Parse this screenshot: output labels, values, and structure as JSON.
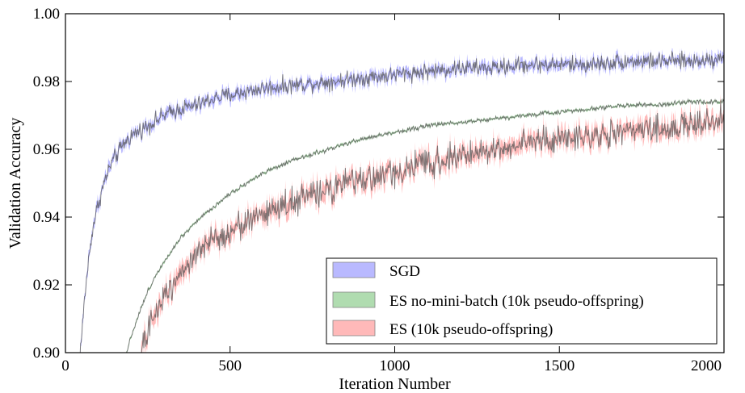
{
  "chart_data": {
    "type": "line",
    "title": "",
    "xlabel": "Iteration Number",
    "ylabel": "Validation Accuracy",
    "xlim": [
      0,
      2000
    ],
    "ylim": [
      0.9,
      1.0
    ],
    "x_ticks": [
      0,
      500,
      1000,
      1500,
      2000
    ],
    "x_tick_labels": [
      "0",
      "500",
      "1000",
      "1500",
      "2000"
    ],
    "y_ticks": [
      0.9,
      0.92,
      0.94,
      0.96,
      0.98,
      1.0
    ],
    "y_tick_labels": [
      "0.90",
      "0.92",
      "0.94",
      "0.96",
      "0.98",
      "1.00"
    ],
    "grid": false,
    "legend_position": "bottom-right",
    "series": [
      {
        "name": "SGD",
        "color": "#8080ff",
        "x": [
          40,
          50,
          60,
          70,
          80,
          90,
          100,
          120,
          140,
          160,
          180,
          200,
          250,
          300,
          350,
          400,
          450,
          500,
          600,
          700,
          800,
          900,
          1000,
          1100,
          1200,
          1300,
          1400,
          1500,
          1600,
          1700,
          1800,
          1900,
          2000
        ],
        "values": [
          0.895,
          0.906,
          0.918,
          0.927,
          0.935,
          0.94,
          0.944,
          0.951,
          0.956,
          0.959,
          0.962,
          0.964,
          0.967,
          0.97,
          0.972,
          0.973,
          0.975,
          0.976,
          0.978,
          0.979,
          0.98,
          0.981,
          0.982,
          0.983,
          0.984,
          0.984,
          0.985,
          0.985,
          0.985,
          0.986,
          0.986,
          0.986,
          0.987
        ],
        "noise": 0.0015
      },
      {
        "name": "ES no-mini-batch (10k pseudo-offspring)",
        "color": "#70c070",
        "x": [
          185,
          200,
          225,
          250,
          275,
          300,
          350,
          400,
          450,
          500,
          600,
          700,
          800,
          900,
          1000,
          1100,
          1200,
          1300,
          1400,
          1500,
          1600,
          1700,
          1800,
          1900,
          2000
        ],
        "values": [
          0.9,
          0.905,
          0.912,
          0.918,
          0.923,
          0.927,
          0.934,
          0.939,
          0.943,
          0.947,
          0.953,
          0.957,
          0.96,
          0.963,
          0.965,
          0.967,
          0.968,
          0.969,
          0.97,
          0.971,
          0.972,
          0.973,
          0.973,
          0.974,
          0.974
        ],
        "noise": 0.0004
      },
      {
        "name": "ES (10k pseudo-offspring)",
        "color": "#ff8080",
        "x": [
          230,
          250,
          275,
          300,
          350,
          400,
          450,
          500,
          600,
          700,
          800,
          900,
          1000,
          1100,
          1200,
          1300,
          1400,
          1500,
          1600,
          1700,
          1800,
          1900,
          2000
        ],
        "values": [
          0.9,
          0.906,
          0.912,
          0.917,
          0.924,
          0.929,
          0.933,
          0.936,
          0.941,
          0.945,
          0.948,
          0.951,
          0.953,
          0.956,
          0.958,
          0.96,
          0.962,
          0.963,
          0.964,
          0.965,
          0.966,
          0.967,
          0.969
        ],
        "noise": 0.0025
      }
    ]
  }
}
